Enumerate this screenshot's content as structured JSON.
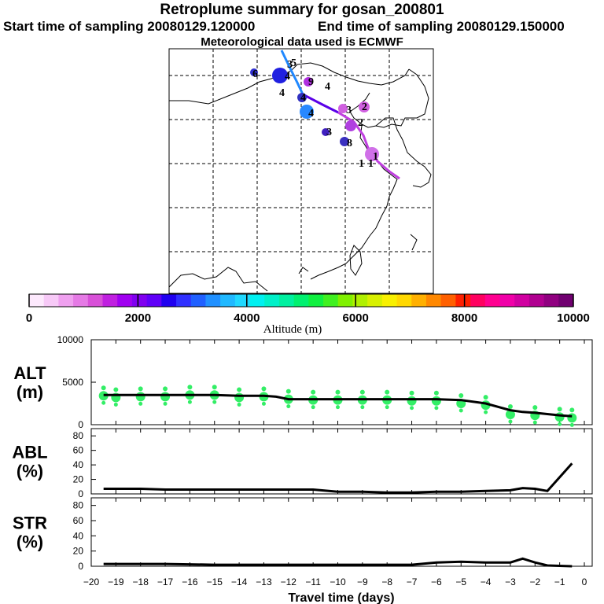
{
  "header": {
    "title": "Retroplume summary for gosan_200801",
    "start": "Start time of sampling 20080129.120000",
    "end": "End time of sampling 20080129.150000",
    "met": "Meteorological data used is ECMWF"
  },
  "colorbar": {
    "label": "Altitude (m)",
    "ticks": [
      "0",
      "2000",
      "4000",
      "6000",
      "8000",
      "10000"
    ],
    "colors": [
      "#fde9fd",
      "#f7c9f7",
      "#efa0ef",
      "#e57ae5",
      "#d850d8",
      "#c020e0",
      "#a000f0",
      "#8000f0",
      "#6000f8",
      "#2000f0",
      "#3030ff",
      "#2060ff",
      "#2090ff",
      "#20b8ff",
      "#20d8ff",
      "#00f0f0",
      "#00f0c8",
      "#00f0a0",
      "#00f070",
      "#10f040",
      "#40f020",
      "#80f000",
      "#b0f000",
      "#d8f000",
      "#f8f000",
      "#ffd800",
      "#ffb000",
      "#ff8800",
      "#ff6000",
      "#ff2000",
      "#ff0060",
      "#ff0090",
      "#f000a8",
      "#d000a0",
      "#b00090",
      "#900080",
      "#700070"
    ]
  },
  "map": {
    "markers": [
      "1",
      "1",
      "1",
      "2",
      "2",
      "3",
      "3",
      "3",
      "4",
      "4",
      "4",
      "4",
      "4",
      "5",
      "6",
      "8",
      "9"
    ]
  },
  "chart_data": [
    {
      "type": "line",
      "panel": "ALT",
      "ylabel": "ALT\n(m)",
      "ylabel_line1": "ALT",
      "ylabel_line2": "(m)",
      "ylim": [
        0,
        10000
      ],
      "yticks": [
        "10000",
        "5000",
        "0"
      ],
      "x": [
        -19.5,
        -19,
        -18,
        -17,
        -16,
        -15,
        -14,
        -13,
        -12.5,
        -12,
        -11,
        -10,
        -9,
        -8,
        -7,
        -6,
        -5,
        -4,
        -3,
        -2.5,
        -2,
        -1,
        -0.5
      ],
      "values": [
        3500,
        3500,
        3500,
        3500,
        3500,
        3500,
        3400,
        3400,
        3300,
        3000,
        3000,
        3000,
        3000,
        3000,
        3000,
        3000,
        2900,
        2500,
        1700,
        1500,
        1400,
        1100,
        1000
      ],
      "scatter_x": [
        -19.5,
        -19,
        -18,
        -17,
        -16,
        -15,
        -14,
        -13,
        -12,
        -11,
        -10,
        -9,
        -8,
        -7,
        -6,
        -5,
        -4,
        -3,
        -2,
        -1,
        -0.5
      ],
      "scatter_y": [
        3400,
        3200,
        3300,
        3300,
        3500,
        3500,
        3200,
        3300,
        3000,
        2900,
        2900,
        2900,
        2900,
        2800,
        2800,
        2500,
        2300,
        1200,
        1100,
        900,
        800
      ]
    },
    {
      "type": "line",
      "panel": "ABL",
      "ylabel_line1": "ABL",
      "ylabel_line2": "(%)",
      "ylim": [
        0,
        90
      ],
      "yticks": [
        "80",
        "60",
        "40",
        "20",
        "0"
      ],
      "x": [
        -19.5,
        -18,
        -17,
        -15,
        -13,
        -11,
        -10,
        -9,
        -8,
        -7,
        -6,
        -5,
        -4,
        -3,
        -2.5,
        -2,
        -1.5,
        -0.5
      ],
      "values": [
        7,
        7,
        6,
        6,
        6,
        6,
        3,
        3,
        2,
        2,
        3,
        3,
        4,
        5,
        8,
        7,
        4,
        42
      ]
    },
    {
      "type": "line",
      "panel": "STR",
      "ylabel_line1": "STR",
      "ylabel_line2": "(%)",
      "ylim": [
        0,
        90
      ],
      "yticks": [
        "80",
        "60",
        "40",
        "20",
        "0"
      ],
      "x": [
        -19.5,
        -17,
        -15,
        -13,
        -11,
        -9,
        -7,
        -6,
        -5,
        -4,
        -3,
        -2.5,
        -2,
        -1.5,
        -0.5
      ],
      "values": [
        3,
        3,
        2,
        2,
        2,
        2,
        2,
        5,
        6,
        5,
        5,
        10,
        5,
        1,
        0
      ]
    }
  ],
  "xaxis": {
    "label": "Travel time (days)",
    "ticks": [
      "−20",
      "−19",
      "−18",
      "−17",
      "−16",
      "−15",
      "−14",
      "−13",
      "−12",
      "−11",
      "−10",
      "−9",
      "−8",
      "−7",
      "−6",
      "−5",
      "−4",
      "−3",
      "−2",
      "−1",
      "0"
    ]
  }
}
